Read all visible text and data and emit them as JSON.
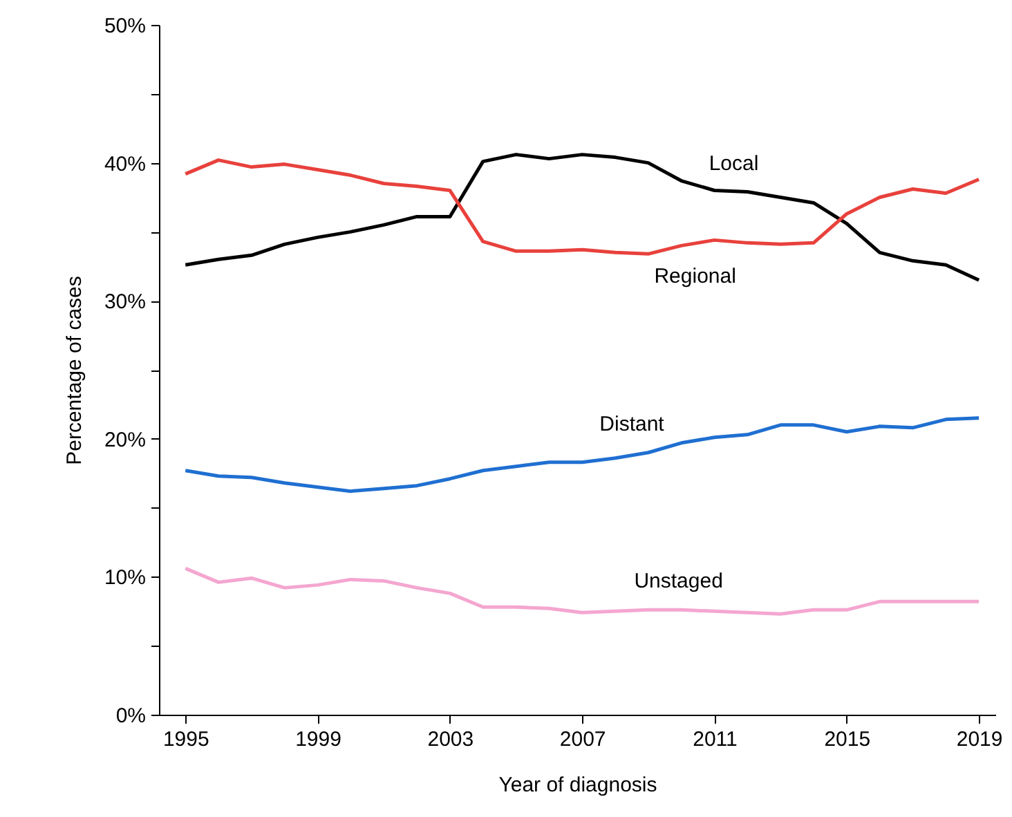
{
  "chart_data": {
    "type": "line",
    "xlabel": "Year of diagnosis",
    "ylabel": "Percentage of cases",
    "x": [
      1995,
      1996,
      1997,
      1998,
      1999,
      2000,
      2001,
      2002,
      2003,
      2004,
      2005,
      2006,
      2007,
      2008,
      2009,
      2010,
      2011,
      2012,
      2013,
      2014,
      2015,
      2016,
      2017,
      2018,
      2019
    ],
    "series": [
      {
        "name": "Local",
        "color": "#000000",
        "values": [
          32.6,
          33.0,
          33.3,
          34.1,
          34.6,
          35.0,
          35.5,
          36.1,
          36.1,
          40.1,
          40.6,
          40.3,
          40.6,
          40.4,
          40.0,
          38.7,
          38.0,
          37.9,
          37.5,
          37.1,
          35.6,
          33.5,
          32.9,
          32.6,
          31.5
        ]
      },
      {
        "name": "Regional",
        "color": "#e8413c",
        "values": [
          39.2,
          40.2,
          39.7,
          39.9,
          39.5,
          39.1,
          38.5,
          38.3,
          38.0,
          34.3,
          33.6,
          33.6,
          33.7,
          33.5,
          33.4,
          34.0,
          34.4,
          34.2,
          34.1,
          34.2,
          36.3,
          37.5,
          38.1,
          37.8,
          38.8
        ]
      },
      {
        "name": "Distant",
        "color": "#1f6fd1",
        "values": [
          17.7,
          17.3,
          17.2,
          16.8,
          16.5,
          16.2,
          16.4,
          16.6,
          17.1,
          17.7,
          18.0,
          18.3,
          18.3,
          18.6,
          19.0,
          19.7,
          20.1,
          20.3,
          21.0,
          21.0,
          20.5,
          20.9,
          20.8,
          21.4,
          21.5
        ]
      },
      {
        "name": "Unstaged",
        "color": "#f4a6d0",
        "values": [
          10.6,
          9.6,
          9.9,
          9.2,
          9.4,
          9.8,
          9.7,
          9.2,
          8.8,
          7.8,
          7.8,
          7.7,
          7.4,
          7.5,
          7.6,
          7.6,
          7.5,
          7.4,
          7.3,
          7.6,
          7.6,
          8.2,
          8.2,
          8.2,
          8.2
        ]
      }
    ],
    "legend": false,
    "xlim": [
      1994.2,
      2019.5
    ],
    "xticks": [
      1995,
      1999,
      2003,
      2007,
      2011,
      2015,
      2019
    ],
    "ylim": [
      0,
      50
    ],
    "yticks": [
      {
        "value": 0,
        "label": "0%"
      },
      {
        "value": 5,
        "label": null
      },
      {
        "value": 10,
        "label": "10%"
      },
      {
        "value": 15,
        "label": null
      },
      {
        "value": 20,
        "label": "20%"
      },
      {
        "value": 25,
        "label": null
      },
      {
        "value": 30,
        "label": "30%"
      },
      {
        "value": 35,
        "label": null
      },
      {
        "value": 40,
        "label": "40%"
      },
      {
        "value": 45,
        "label": null
      },
      {
        "value": 50,
        "label": "50%"
      }
    ],
    "grid": false,
    "marker": "none",
    "line_style": "solid"
  }
}
